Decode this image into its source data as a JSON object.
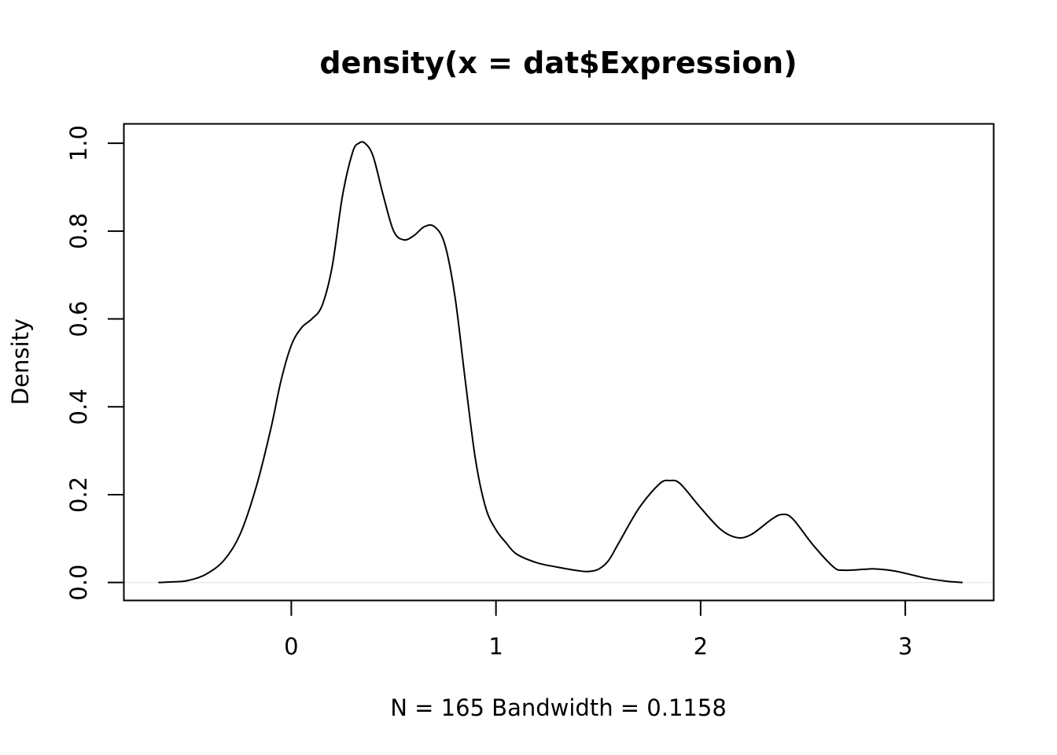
{
  "chart_data": {
    "type": "line",
    "title": "density(x = dat$Expression)",
    "xlabel": "N = 165   Bandwidth = 0.1158",
    "ylabel": "Density",
    "xlim": [
      -0.82,
      3.43
    ],
    "ylim": [
      -0.04,
      1.045
    ],
    "x_ticks": [
      0,
      1,
      2,
      3
    ],
    "x_tick_labels": [
      "0",
      "1",
      "2",
      "3"
    ],
    "y_ticks": [
      0,
      0.2,
      0.4,
      0.6,
      0.8,
      1.0
    ],
    "y_tick_labels": [
      "0.0",
      "0.2",
      "0.4",
      "0.6",
      "0.8",
      "1.0"
    ],
    "grid": false,
    "series": [
      {
        "x": [
          -0.65,
          -0.55,
          -0.5,
          -0.42,
          -0.33,
          -0.25,
          -0.17,
          -0.1,
          -0.05,
          0.0,
          0.05,
          0.1,
          0.15,
          0.2,
          0.25,
          0.3,
          0.33,
          0.36,
          0.4,
          0.45,
          0.5,
          0.55,
          0.6,
          0.65,
          0.7,
          0.75,
          0.8,
          0.85,
          0.9,
          0.95,
          1.0,
          1.05,
          1.1,
          1.2,
          1.3,
          1.4,
          1.45,
          1.5,
          1.55,
          1.6,
          1.7,
          1.8,
          1.85,
          1.9,
          2.0,
          2.1,
          2.18,
          2.25,
          2.35,
          2.4,
          2.45,
          2.55,
          2.65,
          2.7,
          2.8,
          2.85,
          2.95,
          3.1,
          3.2,
          3.28
        ],
        "y": [
          0.0,
          0.002,
          0.005,
          0.018,
          0.05,
          0.11,
          0.22,
          0.35,
          0.46,
          0.54,
          0.58,
          0.6,
          0.63,
          0.72,
          0.88,
          0.98,
          1.0,
          1.0,
          0.97,
          0.88,
          0.8,
          0.78,
          0.79,
          0.81,
          0.81,
          0.77,
          0.65,
          0.46,
          0.28,
          0.17,
          0.12,
          0.09,
          0.065,
          0.045,
          0.035,
          0.027,
          0.025,
          0.03,
          0.05,
          0.09,
          0.17,
          0.225,
          0.232,
          0.225,
          0.17,
          0.12,
          0.102,
          0.11,
          0.145,
          0.155,
          0.145,
          0.085,
          0.035,
          0.028,
          0.03,
          0.031,
          0.026,
          0.01,
          0.003,
          0.0
        ]
      }
    ]
  }
}
